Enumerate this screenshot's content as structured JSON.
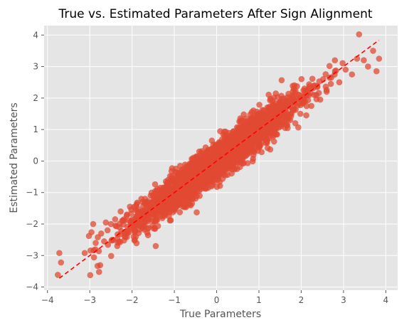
{
  "chart_data": {
    "type": "scatter",
    "title": "True vs. Estimated Parameters After Sign Alignment",
    "xlabel": "True Parameters",
    "ylabel": "Estimated Parameters",
    "xlim": [
      -4.08,
      4.28
    ],
    "ylim": [
      -4.1,
      4.3
    ],
    "xticks": [
      -4,
      -3,
      -2,
      -1,
      0,
      1,
      2,
      3,
      4
    ],
    "yticks": [
      -4,
      -3,
      -2,
      -1,
      0,
      1,
      2,
      3,
      4
    ],
    "xtick_labels": [
      "−4",
      "−3",
      "−2",
      "−1",
      "0",
      "1",
      "2",
      "3",
      "4"
    ],
    "ytick_labels": [
      "−4",
      "−3",
      "−2",
      "−1",
      "0",
      "1",
      "2",
      "3",
      "4"
    ],
    "grid": true,
    "style": "ggplot",
    "point_color": "#E24A33",
    "point_alpha": 0.75,
    "reference_line": {
      "style": "dashed",
      "color": "#ff0000",
      "from": [
        -3.72,
        -3.72
      ],
      "to": [
        3.84,
        3.84
      ]
    },
    "series": [
      {
        "x": [
          -3.72,
          -3.68,
          -3.12,
          -3.02,
          -2.96,
          -2.92,
          -2.9,
          -2.86,
          -2.81,
          -2.78,
          -2.73,
          -2.66,
          -2.62,
          -2.58,
          -2.5,
          -2.47,
          -2.4,
          -2.35,
          -2.3,
          -2.27,
          -2.22,
          -2.19,
          -2.12,
          -2.08,
          -2.05,
          -2.0,
          -1.96,
          -1.92,
          -1.88,
          -1.85,
          -1.78,
          -1.74,
          -1.7,
          -1.66,
          -1.6,
          -1.56,
          -1.5,
          -1.45,
          -1.41,
          -1.38,
          -1.33,
          -1.28,
          -1.24,
          -1.2,
          -1.15,
          -1.1,
          -1.06,
          -1.02,
          -0.98,
          -0.93,
          -0.88,
          -0.84,
          -0.8,
          -0.75,
          -0.7,
          -0.66,
          -0.62,
          -0.57,
          -0.52,
          -0.48,
          -0.43,
          -0.38,
          -0.34,
          -0.3,
          -0.25,
          -0.2,
          -0.16,
          -0.11,
          -0.06,
          -0.02,
          0.03,
          0.07,
          0.12,
          0.17,
          0.21,
          0.26,
          0.31,
          0.35,
          0.4,
          0.45,
          0.49,
          0.54,
          0.59,
          0.63,
          0.68,
          0.73,
          0.77,
          0.82,
          0.87,
          0.91,
          0.96,
          1.01,
          1.05,
          1.1,
          1.15,
          1.2,
          1.25,
          1.3,
          1.36,
          1.41,
          1.46,
          1.52,
          1.57,
          1.62,
          1.68,
          1.74,
          1.8,
          1.86,
          1.92,
          1.98,
          2.05,
          2.12,
          2.18,
          2.24,
          2.31,
          2.38,
          2.45,
          2.52,
          2.6,
          2.7,
          2.8,
          2.9,
          3.05,
          3.2,
          3.32,
          3.48,
          3.58,
          3.7,
          3.78,
          3.84
        ],
        "y": [
          -2.92,
          -3.22,
          -2.92,
          -2.38,
          -2.26,
          -2.0,
          -3.06,
          -2.6,
          -2.42,
          -3.52,
          -2.3,
          -2.55,
          -1.95,
          -2.2,
          -2.0,
          -2.5,
          -1.85,
          -2.7,
          -2.1,
          -1.6,
          -1.9,
          -2.52,
          -1.7,
          -2.2,
          -1.45,
          -1.95,
          -2.4,
          -1.55,
          -1.75,
          -2.05,
          -1.2,
          -1.6,
          -2.0,
          -1.3,
          -1.8,
          -1.1,
          -1.55,
          -0.95,
          -1.75,
          -1.25,
          -0.85,
          -1.4,
          -1.0,
          -1.6,
          -0.7,
          -1.3,
          -0.9,
          -1.15,
          -0.55,
          -1.05,
          -0.75,
          -1.2,
          -0.4,
          -0.9,
          -0.6,
          -1.0,
          -0.3,
          -0.7,
          -0.45,
          -0.85,
          -0.2,
          -0.55,
          -0.3,
          -0.6,
          0.05,
          -0.35,
          -0.1,
          -0.45,
          0.2,
          -0.15,
          0.1,
          -0.25,
          0.35,
          0.0,
          0.25,
          -0.1,
          0.5,
          0.15,
          0.4,
          0.05,
          0.7,
          0.3,
          0.55,
          0.2,
          0.85,
          0.45,
          0.7,
          0.35,
          1.0,
          0.6,
          0.85,
          0.5,
          1.15,
          0.75,
          1.05,
          0.7,
          1.35,
          0.95,
          1.2,
          0.85,
          1.55,
          1.1,
          1.4,
          1.05,
          1.75,
          1.3,
          1.65,
          1.2,
          2.0,
          1.5,
          1.85,
          1.45,
          2.3,
          1.75,
          2.1,
          2.35,
          1.95,
          2.6,
          2.2,
          2.45,
          2.85,
          2.5,
          2.9,
          2.75,
          3.25,
          3.2,
          3.0,
          3.5,
          2.85,
          3.25
        ]
      }
    ],
    "cloud": {
      "n": 2600,
      "x_sd": 0.93,
      "resid_sd": 0.3
    }
  }
}
